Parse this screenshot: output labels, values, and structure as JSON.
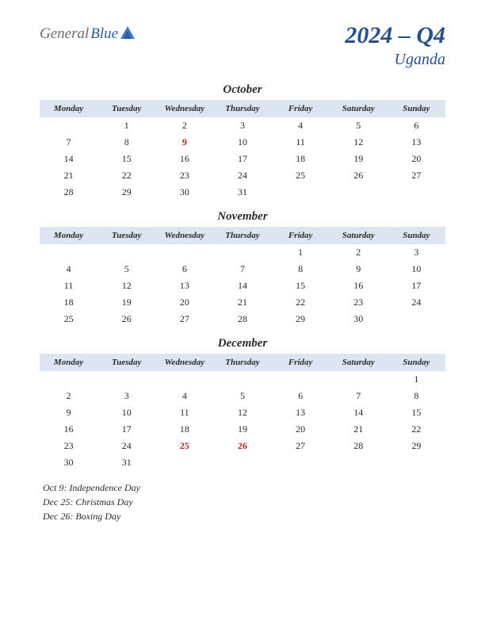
{
  "logo": {
    "part1": "General",
    "part2": "Blue"
  },
  "title": {
    "main": "2024 – Q4",
    "sub": "Uganda"
  },
  "dayHeaders": [
    "Monday",
    "Tuesday",
    "Wednesday",
    "Thursday",
    "Friday",
    "Saturday",
    "Sunday"
  ],
  "colors": {
    "header_bg": "#dce5f2",
    "title_color": "#2a4f8f",
    "holiday_color": "#c02020",
    "text_color": "#2a2a2a",
    "logo_gray": "#6a6a6a",
    "logo_blue": "#2a5fa3"
  },
  "months": [
    {
      "name": "October",
      "weeks": [
        [
          "",
          "1",
          "2",
          "3",
          "4",
          "5",
          "6"
        ],
        [
          "7",
          "8",
          "9",
          "10",
          "11",
          "12",
          "13"
        ],
        [
          "14",
          "15",
          "16",
          "17",
          "18",
          "19",
          "20"
        ],
        [
          "21",
          "22",
          "23",
          "24",
          "25",
          "26",
          "27"
        ],
        [
          "28",
          "29",
          "30",
          "31",
          "",
          "",
          ""
        ]
      ],
      "holidays": [
        "9"
      ]
    },
    {
      "name": "November",
      "weeks": [
        [
          "",
          "",
          "",
          "",
          "1",
          "2",
          "3"
        ],
        [
          "4",
          "5",
          "6",
          "7",
          "8",
          "9",
          "10"
        ],
        [
          "11",
          "12",
          "13",
          "14",
          "15",
          "16",
          "17"
        ],
        [
          "18",
          "19",
          "20",
          "21",
          "22",
          "23",
          "24"
        ],
        [
          "25",
          "26",
          "27",
          "28",
          "29",
          "30",
          ""
        ]
      ],
      "holidays": []
    },
    {
      "name": "December",
      "weeks": [
        [
          "",
          "",
          "",
          "",
          "",
          "",
          "1"
        ],
        [
          "2",
          "3",
          "4",
          "5",
          "6",
          "7",
          "8"
        ],
        [
          "9",
          "10",
          "11",
          "12",
          "13",
          "14",
          "15"
        ],
        [
          "16",
          "17",
          "18",
          "19",
          "20",
          "21",
          "22"
        ],
        [
          "23",
          "24",
          "25",
          "26",
          "27",
          "28",
          "29"
        ],
        [
          "30",
          "31",
          "",
          "",
          "",
          "",
          ""
        ]
      ],
      "holidays": [
        "25",
        "26"
      ]
    }
  ],
  "holidayList": [
    "Oct 9: Independence Day",
    "Dec 25: Christmas Day",
    "Dec 26: Boxing Day"
  ]
}
